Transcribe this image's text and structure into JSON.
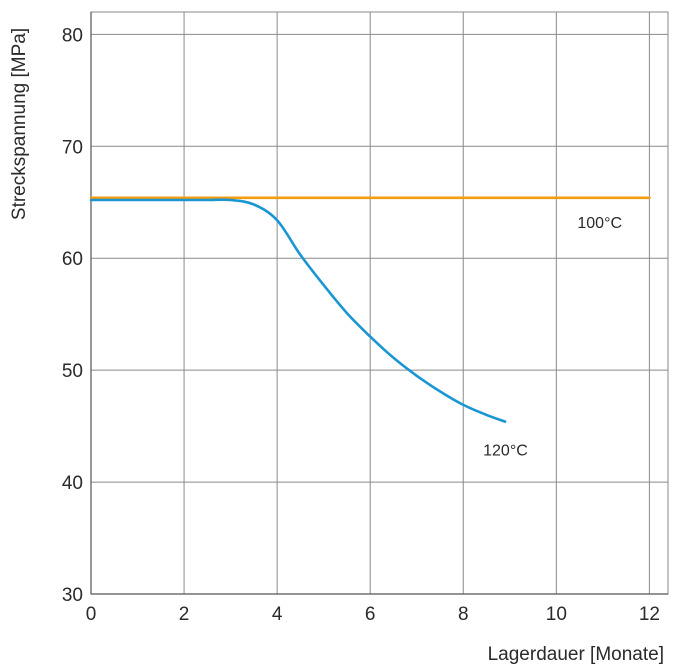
{
  "chart_data": {
    "type": "line",
    "title": "",
    "xlabel": "Lagerdauer [Monate]",
    "ylabel": "Streckspannung [MPa]",
    "xlim": [
      0,
      12.4
    ],
    "ylim": [
      30,
      82
    ],
    "xticks": [
      0,
      2,
      4,
      6,
      8,
      10,
      12
    ],
    "yticks": [
      30,
      40,
      50,
      60,
      70,
      80
    ],
    "grid": true,
    "legend": "none",
    "series": [
      {
        "name": "100°C",
        "color": "#f39c12",
        "x": [
          0,
          12
        ],
        "y": [
          65.4,
          65.4
        ]
      },
      {
        "name": "120°C",
        "color": "#1a96d3",
        "x": [
          0,
          1,
          2,
          2.5,
          3,
          3.5,
          4,
          4.5,
          5,
          5.5,
          6,
          6.5,
          7,
          7.5,
          8,
          8.5,
          8.9
        ],
        "y": [
          65.2,
          65.2,
          65.2,
          65.2,
          65.2,
          64.8,
          63.4,
          60.3,
          57.6,
          55.1,
          53.0,
          51.1,
          49.5,
          48.1,
          46.9,
          46.0,
          45.4
        ]
      }
    ]
  }
}
